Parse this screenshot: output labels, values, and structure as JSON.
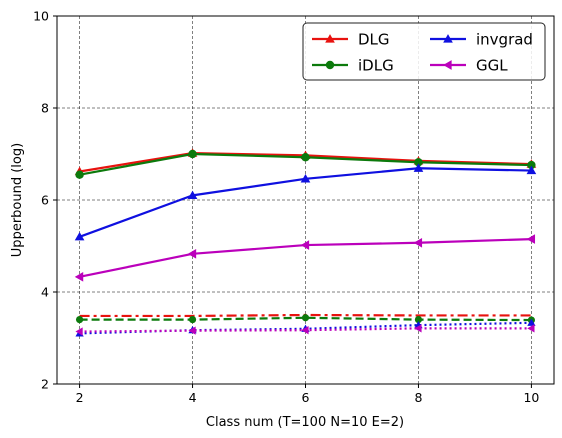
{
  "chart_data": {
    "type": "line",
    "xlabel": "Class num (T=100 N=10 E=2)",
    "ylabel": "Upperbound (log)",
    "x": [
      2,
      4,
      6,
      8,
      10
    ],
    "xlim": [
      1.6,
      10.4
    ],
    "ylim": [
      2,
      10
    ],
    "xticks": [
      2,
      4,
      6,
      8,
      10
    ],
    "yticks": [
      2,
      4,
      6,
      8,
      10
    ],
    "grid": true,
    "legend_position": "upper-right",
    "legend_columns": 2,
    "series": [
      {
        "name": "DLG",
        "color": "#e8120f",
        "marker": "triangle-up",
        "linestyle": "solid",
        "values": [
          6.62,
          7.02,
          6.97,
          6.85,
          6.78
        ]
      },
      {
        "name": "iDLG",
        "color": "#0c7a0c",
        "marker": "circle",
        "linestyle": "solid",
        "values": [
          6.55,
          7.0,
          6.93,
          6.82,
          6.76
        ]
      },
      {
        "name": "invgrad",
        "color": "#0f10e0",
        "marker": "triangle-up",
        "linestyle": "solid",
        "values": [
          5.2,
          6.1,
          6.46,
          6.69,
          6.64
        ]
      },
      {
        "name": "GGL",
        "color": "#bb00bb",
        "marker": "triangle-left",
        "linestyle": "solid",
        "values": [
          4.33,
          4.83,
          5.02,
          5.07,
          5.15
        ]
      },
      {
        "color": "#e8120f",
        "marker": "none",
        "linestyle": "dashdot",
        "values": [
          3.48,
          3.48,
          3.5,
          3.49,
          3.49
        ]
      },
      {
        "color": "#0c7a0c",
        "marker": "circle",
        "linestyle": "dashed",
        "values": [
          3.4,
          3.4,
          3.44,
          3.4,
          3.39
        ]
      },
      {
        "color": "#0f10e0",
        "marker": "triangle-up",
        "linestyle": "dotted",
        "values": [
          3.1,
          3.17,
          3.2,
          3.28,
          3.33
        ]
      },
      {
        "color": "#bb00bb",
        "marker": "triangle-left",
        "linestyle": "dotted",
        "values": [
          3.14,
          3.16,
          3.17,
          3.21,
          3.21
        ]
      }
    ]
  }
}
